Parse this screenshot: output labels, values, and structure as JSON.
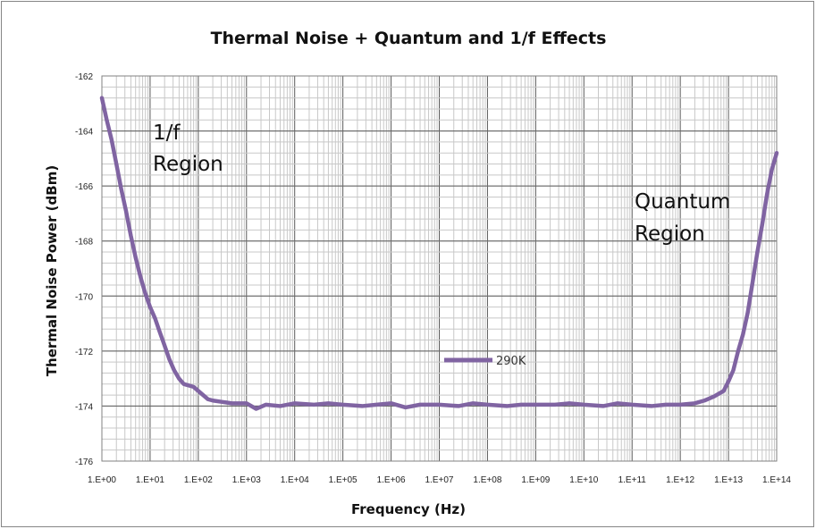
{
  "chart_data": {
    "type": "line",
    "title": "Thermal Noise + Quantum and 1/f Effects",
    "xlabel": "Frequency (Hz)",
    "ylabel": "Thermal Noise Power (dBm)",
    "xscale": "log",
    "xlim_exponent": [
      0,
      14
    ],
    "ylim": [
      -176,
      -162
    ],
    "x_tick_labels": [
      "1.E+00",
      "1.E+01",
      "1.E+02",
      "1.E+03",
      "1.E+04",
      "1.E+05",
      "1.E+06",
      "1.E+07",
      "1.E+08",
      "1.E+09",
      "1.E+10",
      "1.E+11",
      "1.E+12",
      "1.E+13",
      "1.E+14"
    ],
    "y_ticks": [
      -176,
      -174,
      -172,
      -170,
      -168,
      -166,
      -164,
      -162
    ],
    "grid": true,
    "legend_position": "inside-center",
    "annotations": [
      {
        "line1": "1/f",
        "line2": "Region"
      },
      {
        "line1": "Quantum",
        "line2": "Region"
      }
    ],
    "series": [
      {
        "name": "290K",
        "color": "#8064a2",
        "points": [
          [
            1,
            -162.8
          ],
          [
            1.26,
            -163.6
          ],
          [
            1.58,
            -164.3
          ],
          [
            2,
            -165.2
          ],
          [
            2.51,
            -166.1
          ],
          [
            3.16,
            -166.9
          ],
          [
            3.98,
            -167.8
          ],
          [
            5.01,
            -168.6
          ],
          [
            6.31,
            -169.3
          ],
          [
            7.94,
            -169.9
          ],
          [
            10,
            -170.4
          ],
          [
            12.6,
            -170.8
          ],
          [
            15.8,
            -171.3
          ],
          [
            20,
            -171.8
          ],
          [
            25.1,
            -172.3
          ],
          [
            31.6,
            -172.7
          ],
          [
            39.8,
            -173.0
          ],
          [
            50.1,
            -173.2
          ],
          [
            63.1,
            -173.25
          ],
          [
            79.4,
            -173.3
          ],
          [
            100,
            -173.45
          ],
          [
            125.9,
            -173.6
          ],
          [
            158.5,
            -173.75
          ],
          [
            200,
            -173.8
          ],
          [
            316,
            -173.85
          ],
          [
            501,
            -173.9
          ],
          [
            1000,
            -173.9
          ],
          [
            1585,
            -174.1
          ],
          [
            2512,
            -173.95
          ],
          [
            5012,
            -174.0
          ],
          [
            10000,
            -173.9
          ],
          [
            25119,
            -173.95
          ],
          [
            50119,
            -173.9
          ],
          [
            100000,
            -173.95
          ],
          [
            251189,
            -174.0
          ],
          [
            501187,
            -173.95
          ],
          [
            1000000,
            -173.9
          ],
          [
            1995262,
            -174.05
          ],
          [
            3981072,
            -173.95
          ],
          [
            10000000,
            -173.95
          ],
          [
            25118864,
            -174.0
          ],
          [
            50118723,
            -173.9
          ],
          [
            100000000,
            -173.95
          ],
          [
            251188643,
            -174.0
          ],
          [
            501187234,
            -173.95
          ],
          [
            1000000000,
            -173.95
          ],
          [
            2511886432,
            -173.95
          ],
          [
            5011872336,
            -173.9
          ],
          [
            10000000000,
            -173.95
          ],
          [
            25118864315,
            -174.0
          ],
          [
            50118723363,
            -173.9
          ],
          [
            100000000000,
            -173.95
          ],
          [
            251188643151,
            -174.0
          ],
          [
            501187233627,
            -173.95
          ],
          [
            1000000000000,
            -173.95
          ],
          [
            1995262314969,
            -173.9
          ],
          [
            3162277660168,
            -173.8
          ],
          [
            5011872336273,
            -173.65
          ],
          [
            7943282347243,
            -173.45
          ],
          [
            10000000000000,
            -173.1
          ],
          [
            12589254117942,
            -172.7
          ],
          [
            15848931924611,
            -172.0
          ],
          [
            19952623149689,
            -171.4
          ],
          [
            25118864315096,
            -170.6
          ],
          [
            31622776601684,
            -169.5
          ],
          [
            39810717055350,
            -168.4
          ],
          [
            50118723362727,
            -167.4
          ],
          [
            63095734448019,
            -166.3
          ],
          [
            79432823472428,
            -165.4
          ],
          [
            100000000000000,
            -164.8
          ]
        ]
      }
    ]
  }
}
